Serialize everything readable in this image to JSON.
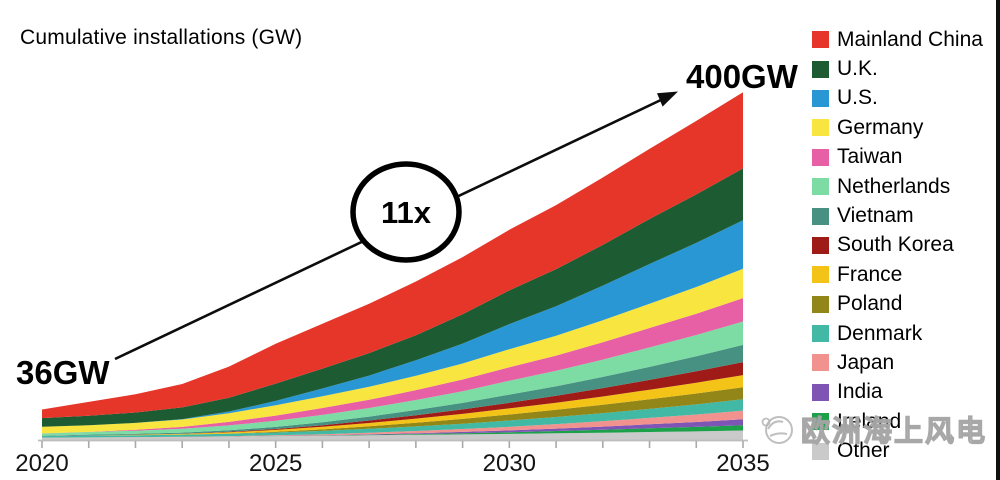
{
  "header": {
    "title": "Cumulative installations (GW)"
  },
  "annotations": {
    "start_label": "36GW",
    "end_label": "400GW",
    "multiplier_label": "11x"
  },
  "watermark": {
    "text": "欧洲海上风电",
    "logo": "offshore-wind-logo-icon"
  },
  "chart_data": {
    "type": "area",
    "stacked": true,
    "title": "Cumulative installations (GW)",
    "unit": "GW",
    "x": [
      2020,
      2021,
      2022,
      2023,
      2024,
      2025,
      2026,
      2027,
      2028,
      2029,
      2030,
      2031,
      2032,
      2033,
      2034,
      2035
    ],
    "x_ticks": [
      {
        "year": 2020,
        "label": "2020"
      },
      {
        "year": 2025,
        "label": "2025"
      },
      {
        "year": 2030,
        "label": "2030"
      },
      {
        "year": 2035,
        "label": "2035"
      }
    ],
    "y_axis_visible": false,
    "ylim": [
      0,
      420
    ],
    "grid": false,
    "legend_position": "right",
    "stack_order": "first series plotted on top",
    "total_2020_gw": 36,
    "total_2035_gw": 400,
    "growth_multiplier": "11x",
    "series": [
      {
        "name": "Mainland China",
        "color": "#e63529",
        "values": [
          10,
          16,
          21,
          27,
          36,
          46,
          52,
          57,
          62,
          66,
          70,
          74,
          78,
          81,
          85,
          88
        ]
      },
      {
        "name": "U.K.",
        "color": "#1d5b33",
        "values": [
          10,
          11,
          12,
          13.5,
          16,
          20,
          23,
          26,
          29,
          34,
          39,
          43,
          47,
          52,
          56,
          60
        ]
      },
      {
        "name": "U.S.",
        "color": "#2a97d5",
        "values": [
          0,
          0,
          0,
          0.5,
          2,
          5,
          9,
          13,
          18,
          23,
          29,
          34,
          40,
          46,
          51,
          56
        ]
      },
      {
        "name": "Germany",
        "color": "#f8e53f",
        "values": [
          7.7,
          7.7,
          8,
          8.5,
          10,
          12,
          13.5,
          15,
          16.5,
          18.5,
          21,
          23,
          25.5,
          28,
          31,
          34
        ]
      },
      {
        "name": "Taiwan",
        "color": "#e75fa4",
        "values": [
          0.1,
          0.2,
          1,
          2.2,
          4,
          6,
          8,
          9.5,
          11.5,
          13.5,
          15.5,
          17.5,
          20,
          22.5,
          24.5,
          27
        ]
      },
      {
        "name": "Netherlands",
        "color": "#7cdca4",
        "values": [
          2.6,
          3,
          3.5,
          4.5,
          5.7,
          7,
          8.5,
          10,
          11.5,
          13.5,
          16,
          18,
          20,
          22.5,
          24.5,
          27
        ]
      },
      {
        "name": "Vietnam",
        "color": "#479182",
        "values": [
          0.3,
          0.8,
          1,
          1.2,
          1.7,
          2.5,
          3.4,
          4.5,
          6,
          7.5,
          9.5,
          11,
          13,
          15,
          17.5,
          20
        ]
      },
      {
        "name": "South Korea",
        "color": "#9e1b17",
        "values": [
          0.1,
          0.1,
          0.2,
          0.3,
          0.6,
          1,
          1.8,
          2.8,
          4,
          5.2,
          6.5,
          8,
          9.7,
          11.4,
          13.2,
          15
        ]
      },
      {
        "name": "France",
        "color": "#f3c317",
        "values": [
          0,
          0,
          0.5,
          0.8,
          1.5,
          2.2,
          3,
          3.8,
          4.8,
          5.8,
          7,
          8.2,
          9.5,
          11,
          12.5,
          14
        ]
      },
      {
        "name": "Poland",
        "color": "#918617",
        "values": [
          0,
          0,
          0,
          0,
          0.2,
          0.8,
          1.8,
          3,
          4.2,
          5.5,
          7,
          8.3,
          9.7,
          11.1,
          12.5,
          14
        ]
      },
      {
        "name": "Denmark",
        "color": "#41b9a5",
        "values": [
          1.7,
          2.3,
          2.3,
          2.5,
          2.8,
          3.2,
          3.8,
          4.5,
          5.3,
          6.2,
          7.2,
          8.2,
          9.3,
          10.4,
          11.7,
          13
        ]
      },
      {
        "name": "Japan",
        "color": "#f2928e",
        "values": [
          0.1,
          0.1,
          0.2,
          0.3,
          0.5,
          0.8,
          1.2,
          1.8,
          2.5,
          3.3,
          4.2,
          5.2,
          6.3,
          7.5,
          8.7,
          10
        ]
      },
      {
        "name": "India",
        "color": "#7e55b5",
        "values": [
          0,
          0,
          0,
          0,
          0,
          0.1,
          0.3,
          0.6,
          1,
          1.5,
          2.1,
          2.8,
          3.6,
          4.6,
          5.7,
          7
        ]
      },
      {
        "name": "Ireland",
        "color": "#1ca04a",
        "values": [
          0,
          0,
          0,
          0,
          0,
          0.1,
          0.2,
          0.5,
          0.9,
          1.4,
          2,
          2.7,
          3.5,
          4.3,
          5.1,
          6
        ]
      },
      {
        "name": "Other",
        "color": "#cacaca",
        "values": [
          2.7,
          2.9,
          3.1,
          3.4,
          3.9,
          4.5,
          5,
          5.5,
          6,
          6.5,
          7,
          7.7,
          8.4,
          9.2,
          10,
          11
        ]
      }
    ]
  }
}
